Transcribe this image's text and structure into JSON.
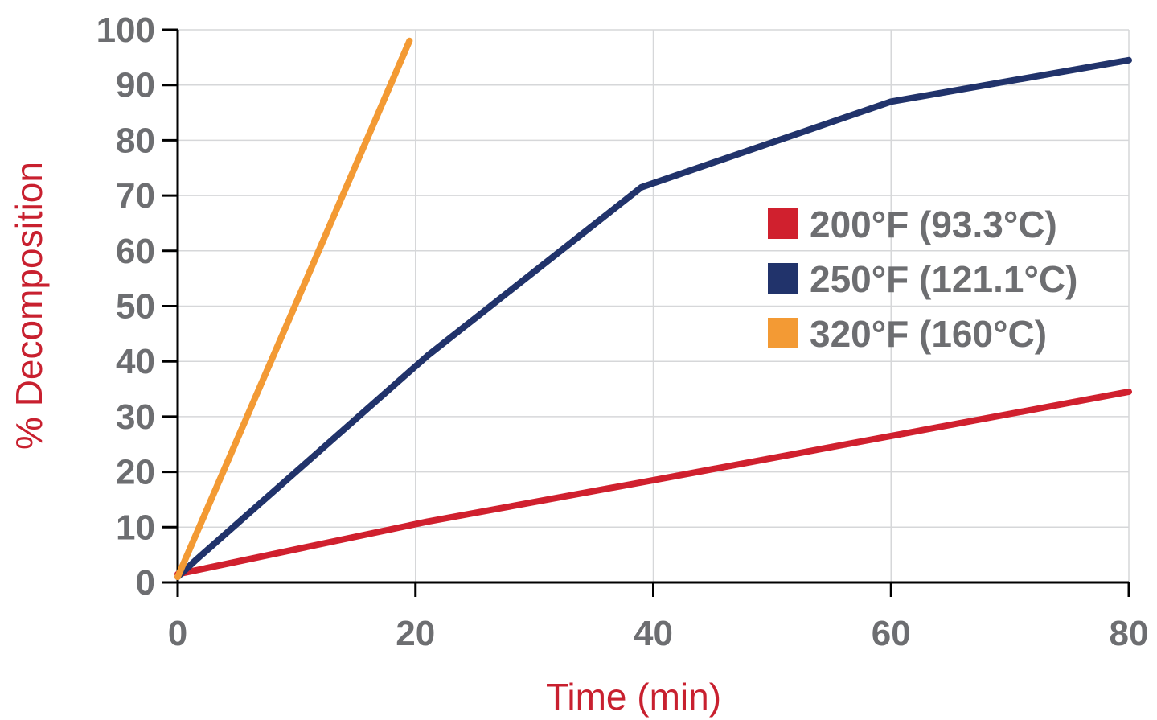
{
  "chart_data": {
    "type": "line",
    "title": "",
    "xlabel": "Time (min)",
    "ylabel": "% Decomposition",
    "xlim": [
      0,
      80
    ],
    "ylim": [
      0,
      100
    ],
    "xticks": [
      0,
      20,
      40,
      60,
      80
    ],
    "yticks": [
      0,
      10,
      20,
      30,
      40,
      50,
      60,
      70,
      80,
      90,
      100
    ],
    "grid": true,
    "legend_position": "right",
    "series": [
      {
        "name": "200°F (93.3°C)",
        "color": "#d0202e",
        "points": [
          [
            0,
            1.5
          ],
          [
            21,
            11
          ],
          [
            40,
            18.5
          ],
          [
            60,
            26.5
          ],
          [
            80,
            34.5
          ]
        ]
      },
      {
        "name": "250°F (121.1°C)",
        "color": "#21336b",
        "points": [
          [
            0,
            1
          ],
          [
            1.5,
            4
          ],
          [
            21,
            41
          ],
          [
            39,
            71.5
          ],
          [
            60,
            87
          ],
          [
            80,
            94.5
          ]
        ]
      },
      {
        "name": "320°F (160°C)",
        "color": "#f39a34",
        "points": [
          [
            0,
            1
          ],
          [
            19.5,
            98
          ]
        ]
      }
    ]
  }
}
